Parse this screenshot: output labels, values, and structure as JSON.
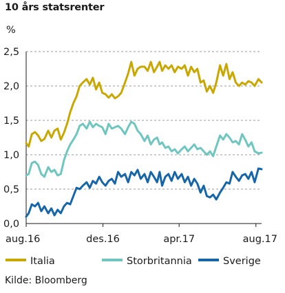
{
  "title": "10 års statsrenter",
  "source": "Kilde: Bloomberg",
  "chart_data": {
    "type": "line",
    "ylabel": "%",
    "ylim": [
      0,
      2.5
    ],
    "yticks": [
      "0,0",
      "0,5",
      "1,0",
      "1,5",
      "2,0",
      "2,5"
    ],
    "yticks_values": [
      0,
      0.5,
      1.0,
      1.5,
      2.0,
      2.5
    ],
    "xticks": [
      "aug.16",
      "des.16",
      "apr.17",
      "aug.17"
    ],
    "xticks_values": [
      "2016-08-01",
      "2016-12-01",
      "2017-04-01",
      "2017-08-01"
    ],
    "xlim": [
      "2016-08-01",
      "2017-08-10"
    ],
    "grid": "horizontal dashed",
    "legend_position": "bottom",
    "series": [
      {
        "name": "Italia",
        "color": "#c8a800",
        "x": [
          "2016-08-01",
          "2016-08-05",
          "2016-08-10",
          "2016-08-15",
          "2016-08-20",
          "2016-08-25",
          "2016-08-30",
          "2016-09-05",
          "2016-09-10",
          "2016-09-15",
          "2016-09-20",
          "2016-09-25",
          "2016-09-30",
          "2016-10-05",
          "2016-10-10",
          "2016-10-15",
          "2016-10-20",
          "2016-10-25",
          "2016-10-30",
          "2016-11-05",
          "2016-11-10",
          "2016-11-15",
          "2016-11-20",
          "2016-11-25",
          "2016-11-30",
          "2016-12-05",
          "2016-12-10",
          "2016-12-15",
          "2016-12-20",
          "2016-12-25",
          "2016-12-30",
          "2017-01-05",
          "2017-01-10",
          "2017-01-15",
          "2017-01-20",
          "2017-01-25",
          "2017-01-30",
          "2017-02-05",
          "2017-02-10",
          "2017-02-15",
          "2017-02-20",
          "2017-02-25",
          "2017-03-01",
          "2017-03-05",
          "2017-03-10",
          "2017-03-15",
          "2017-03-20",
          "2017-03-25",
          "2017-03-30",
          "2017-04-05",
          "2017-04-10",
          "2017-04-15",
          "2017-04-20",
          "2017-04-25",
          "2017-04-30",
          "2017-05-05",
          "2017-05-10",
          "2017-05-15",
          "2017-05-20",
          "2017-05-25",
          "2017-05-30",
          "2017-06-05",
          "2017-06-10",
          "2017-06-15",
          "2017-06-20",
          "2017-06-25",
          "2017-06-30",
          "2017-07-05",
          "2017-07-10",
          "2017-07-15",
          "2017-07-20",
          "2017-07-25",
          "2017-07-30",
          "2017-08-05",
          "2017-08-10"
        ],
        "y": [
          1.17,
          1.12,
          1.3,
          1.33,
          1.28,
          1.2,
          1.23,
          1.35,
          1.25,
          1.35,
          1.38,
          1.22,
          1.32,
          1.45,
          1.62,
          1.75,
          1.85,
          2.0,
          2.05,
          2.1,
          2.02,
          2.12,
          1.95,
          2.05,
          1.9,
          1.88,
          1.83,
          1.88,
          1.82,
          1.85,
          1.9,
          2.05,
          2.18,
          2.35,
          2.15,
          2.25,
          2.28,
          2.28,
          2.22,
          2.35,
          2.2,
          2.28,
          2.35,
          2.22,
          2.3,
          2.25,
          2.3,
          2.2,
          2.28,
          2.25,
          2.3,
          2.15,
          2.28,
          2.2,
          2.25,
          2.05,
          2.08,
          1.92,
          2.0,
          1.9,
          2.05,
          2.3,
          2.15,
          2.32,
          2.1,
          2.2,
          2.05,
          2.0,
          2.05,
          2.02,
          2.07,
          2.05,
          2.0,
          2.1,
          2.05
        ]
      },
      {
        "name": "Storbritannia",
        "color": "#6fc5c0",
        "x": [
          "2016-08-01",
          "2016-08-05",
          "2016-08-10",
          "2016-08-15",
          "2016-08-20",
          "2016-08-25",
          "2016-08-30",
          "2016-09-05",
          "2016-09-10",
          "2016-09-15",
          "2016-09-20",
          "2016-09-25",
          "2016-09-30",
          "2016-10-05",
          "2016-10-10",
          "2016-10-15",
          "2016-10-20",
          "2016-10-25",
          "2016-10-30",
          "2016-11-05",
          "2016-11-10",
          "2016-11-15",
          "2016-11-20",
          "2016-11-25",
          "2016-11-30",
          "2016-12-05",
          "2016-12-10",
          "2016-12-15",
          "2016-12-20",
          "2016-12-25",
          "2016-12-30",
          "2017-01-05",
          "2017-01-10",
          "2017-01-15",
          "2017-01-20",
          "2017-01-25",
          "2017-01-30",
          "2017-02-05",
          "2017-02-10",
          "2017-02-15",
          "2017-02-20",
          "2017-02-25",
          "2017-03-01",
          "2017-03-05",
          "2017-03-10",
          "2017-03-15",
          "2017-03-20",
          "2017-03-25",
          "2017-03-30",
          "2017-04-05",
          "2017-04-10",
          "2017-04-15",
          "2017-04-20",
          "2017-04-25",
          "2017-04-30",
          "2017-05-05",
          "2017-05-10",
          "2017-05-15",
          "2017-05-20",
          "2017-05-25",
          "2017-05-30",
          "2017-06-05",
          "2017-06-10",
          "2017-06-15",
          "2017-06-20",
          "2017-06-25",
          "2017-06-30",
          "2017-07-05",
          "2017-07-10",
          "2017-07-15",
          "2017-07-20",
          "2017-07-25",
          "2017-07-30",
          "2017-08-05",
          "2017-08-10"
        ],
        "y": [
          0.7,
          0.72,
          0.88,
          0.9,
          0.85,
          0.72,
          0.68,
          0.82,
          0.75,
          0.78,
          0.7,
          0.72,
          0.92,
          1.05,
          1.15,
          1.22,
          1.3,
          1.42,
          1.45,
          1.38,
          1.48,
          1.4,
          1.45,
          1.42,
          1.4,
          1.3,
          1.45,
          1.38,
          1.4,
          1.42,
          1.38,
          1.3,
          1.4,
          1.48,
          1.45,
          1.35,
          1.3,
          1.2,
          1.28,
          1.15,
          1.22,
          1.25,
          1.15,
          1.18,
          1.1,
          1.12,
          1.05,
          1.08,
          1.02,
          1.08,
          1.12,
          1.05,
          1.1,
          1.15,
          1.08,
          1.1,
          1.05,
          1.0,
          1.05,
          0.98,
          1.12,
          1.28,
          1.22,
          1.3,
          1.25,
          1.18,
          1.2,
          1.15,
          1.3,
          1.22,
          1.12,
          1.18,
          1.05,
          1.02,
          1.03
        ]
      },
      {
        "name": "Sverige",
        "color": "#1565a8",
        "x": [
          "2016-08-01",
          "2016-08-05",
          "2016-08-10",
          "2016-08-15",
          "2016-08-20",
          "2016-08-25",
          "2016-08-30",
          "2016-09-05",
          "2016-09-10",
          "2016-09-15",
          "2016-09-20",
          "2016-09-25",
          "2016-09-30",
          "2016-10-05",
          "2016-10-10",
          "2016-10-15",
          "2016-10-20",
          "2016-10-25",
          "2016-10-30",
          "2016-11-05",
          "2016-11-10",
          "2016-11-15",
          "2016-11-20",
          "2016-11-25",
          "2016-11-30",
          "2016-12-05",
          "2016-12-10",
          "2016-12-15",
          "2016-12-20",
          "2016-12-25",
          "2016-12-30",
          "2017-01-05",
          "2017-01-10",
          "2017-01-15",
          "2017-01-20",
          "2017-01-25",
          "2017-01-30",
          "2017-02-05",
          "2017-02-10",
          "2017-02-15",
          "2017-02-20",
          "2017-02-25",
          "2017-03-01",
          "2017-03-05",
          "2017-03-10",
          "2017-03-15",
          "2017-03-20",
          "2017-03-25",
          "2017-03-30",
          "2017-04-05",
          "2017-04-10",
          "2017-04-15",
          "2017-04-20",
          "2017-04-25",
          "2017-04-30",
          "2017-05-05",
          "2017-05-10",
          "2017-05-15",
          "2017-05-20",
          "2017-05-25",
          "2017-05-30",
          "2017-06-05",
          "2017-06-10",
          "2017-06-15",
          "2017-06-20",
          "2017-06-25",
          "2017-06-30",
          "2017-07-05",
          "2017-07-10",
          "2017-07-15",
          "2017-07-20",
          "2017-07-25",
          "2017-07-30",
          "2017-08-05",
          "2017-08-10"
        ],
        "y": [
          0.1,
          0.15,
          0.28,
          0.25,
          0.3,
          0.18,
          0.25,
          0.15,
          0.22,
          0.12,
          0.2,
          0.15,
          0.25,
          0.3,
          0.28,
          0.4,
          0.52,
          0.5,
          0.55,
          0.6,
          0.52,
          0.62,
          0.58,
          0.68,
          0.6,
          0.55,
          0.62,
          0.65,
          0.58,
          0.75,
          0.68,
          0.72,
          0.6,
          0.75,
          0.7,
          0.78,
          0.65,
          0.72,
          0.6,
          0.75,
          0.68,
          0.6,
          0.75,
          0.55,
          0.68,
          0.72,
          0.62,
          0.75,
          0.65,
          0.72,
          0.6,
          0.68,
          0.55,
          0.65,
          0.58,
          0.45,
          0.55,
          0.4,
          0.38,
          0.42,
          0.35,
          0.45,
          0.52,
          0.6,
          0.58,
          0.75,
          0.68,
          0.62,
          0.7,
          0.72,
          0.65,
          0.75,
          0.6,
          0.8,
          0.79
        ]
      }
    ]
  }
}
